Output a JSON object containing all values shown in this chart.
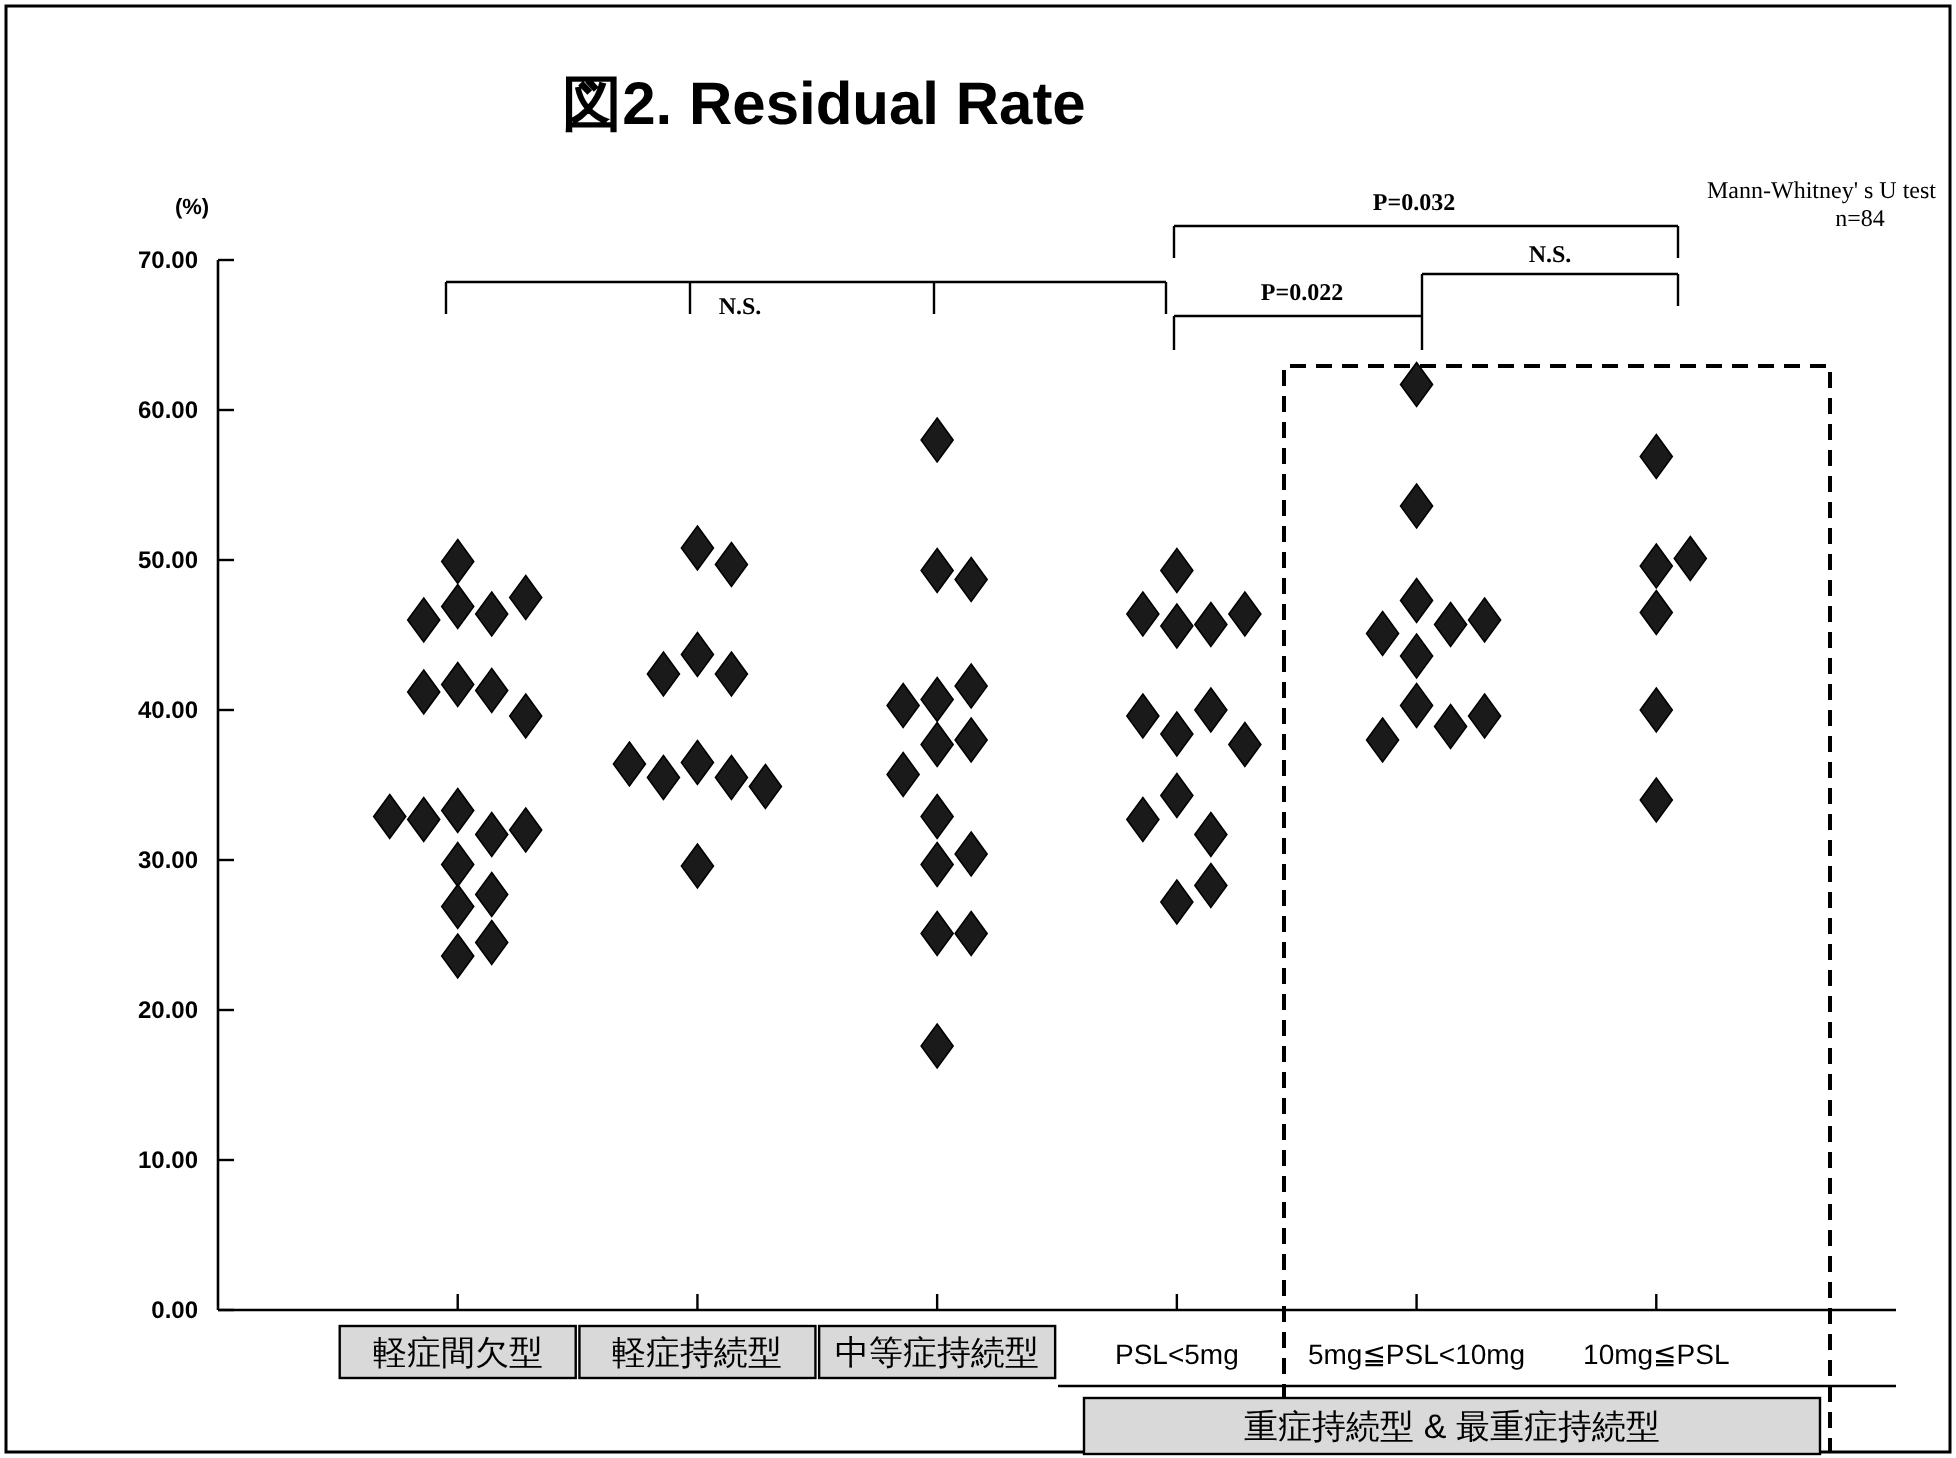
{
  "chart_data": {
    "type": "scatter",
    "title": "図2. Residual Rate",
    "ylabel": "(%)",
    "categories": [
      "軽症間欠型",
      "軽症持続型",
      "中等症持続型",
      "PSL<5mg",
      "5mg≦PSL<10mg",
      "10mg≦PSL"
    ],
    "ylim": [
      0,
      70
    ],
    "yticks": [
      {
        "value": 0,
        "label": "0.00"
      },
      {
        "value": 10,
        "label": "10.00"
      },
      {
        "value": 20,
        "label": "20.00"
      },
      {
        "value": 30,
        "label": "30.00"
      },
      {
        "value": 40,
        "label": "40.00"
      },
      {
        "value": 50,
        "label": "50.00"
      },
      {
        "value": 60,
        "label": "60.00"
      },
      {
        "value": 70,
        "label": "70.00"
      }
    ],
    "marker": "diamond",
    "grid": false,
    "series": [
      {
        "color": "#1a1a1a",
        "x": [
          "軽症間欠型",
          "軽症間欠型",
          "軽症間欠型",
          "軽症間欠型",
          "軽症間欠型",
          "軽症間欠型",
          "軽症間欠型",
          "軽症間欠型",
          "軽症間欠型",
          "軽症間欠型",
          "軽症間欠型",
          "軽症間欠型",
          "軽症間欠型",
          "軽症間欠型",
          "軽症間欠型",
          "軽症間欠型",
          "軽症間欠型",
          "軽症間欠型",
          "軽症間欠型",
          "軽症持続型",
          "軽症持続型",
          "軽症持続型",
          "軽症持続型",
          "軽症持続型",
          "軽症持続型",
          "軽症持続型",
          "軽症持続型",
          "軽症持続型",
          "軽症持続型",
          "軽症持続型",
          "中等症持続型",
          "中等症持続型",
          "中等症持続型",
          "中等症持続型",
          "中等症持続型",
          "中等症持続型",
          "中等症持続型",
          "中等症持続型",
          "中等症持続型",
          "中等症持続型",
          "中等症持続型",
          "中等症持続型",
          "中等症持続型",
          "中等症持続型",
          "中等症持続型",
          "PSL<5mg",
          "PSL<5mg",
          "PSL<5mg",
          "PSL<5mg",
          "PSL<5mg",
          "PSL<5mg",
          "PSL<5mg",
          "PSL<5mg",
          "PSL<5mg",
          "PSL<5mg",
          "PSL<5mg",
          "PSL<5mg",
          "PSL<5mg",
          "PSL<5mg",
          "5mg≦PSL<10mg",
          "5mg≦PSL<10mg",
          "5mg≦PSL<10mg",
          "5mg≦PSL<10mg",
          "5mg≦PSL<10mg",
          "5mg≦PSL<10mg",
          "5mg≦PSL<10mg",
          "5mg≦PSL<10mg",
          "5mg≦PSL<10mg",
          "5mg≦PSL<10mg",
          "5mg≦PSL<10mg",
          "10mg≦PSL",
          "10mg≦PSL",
          "10mg≦PSL",
          "10mg≦PSL",
          "10mg≦PSL",
          "10mg≦PSL"
        ],
        "values": [
          49.9,
          46.9,
          46.4,
          46.0,
          47.5,
          41.7,
          41.3,
          41.2,
          39.6,
          33.3,
          31.7,
          32.7,
          32.0,
          32.9,
          29.7,
          26.9,
          27.7,
          23.6,
          24.5,
          50.8,
          49.7,
          43.7,
          42.4,
          42.4,
          36.5,
          35.5,
          35.5,
          34.9,
          36.4,
          29.6,
          58.0,
          49.3,
          48.7,
          40.7,
          41.6,
          40.3,
          38.0,
          37.7,
          35.7,
          32.9,
          30.4,
          29.7,
          25.1,
          25.1,
          17.6,
          49.3,
          45.6,
          45.7,
          46.4,
          46.4,
          38.4,
          40.0,
          39.6,
          37.7,
          34.3,
          31.7,
          32.7,
          27.2,
          28.3,
          61.7,
          53.6,
          47.3,
          45.7,
          45.1,
          46.0,
          43.6,
          40.3,
          38.9,
          38.0,
          39.6,
          56.9,
          49.6,
          50.1,
          46.5,
          40.0,
          34.0
        ]
      }
    ],
    "annotations": [
      "Mann-Whitney' s U test",
      "n=84",
      "N.S.",
      "P=0.032",
      "N.S.",
      "P=0.022",
      "重症持続型 & 最重症持続型"
    ]
  }
}
